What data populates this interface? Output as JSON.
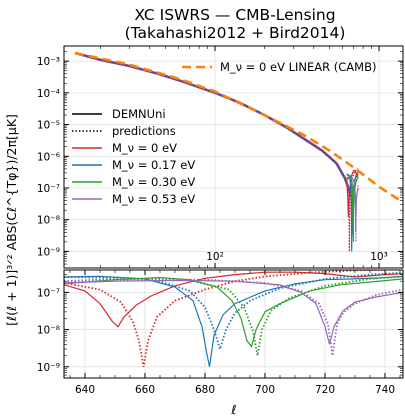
{
  "chart_data": {
    "type": "line",
    "title": "XC ISWRS — CMB-Lensing",
    "subtitle": "(Takahashi2012 + Bird2014)",
    "ylabel": "[ℓ(ℓ + 1)]³ᐟ² ABS(Cℓ^{Tφ})/2π[μK]",
    "xlabel": "ℓ",
    "colors": {
      "mnu_0": "#d62728",
      "mnu_017": "#1f77b4",
      "mnu_030": "#2ca02c",
      "mnu_053": "#9467bd",
      "linear": "#ff7f0e"
    },
    "top_panel": {
      "xscale": "log",
      "yscale": "log",
      "xlim": [
        12,
        1400
      ],
      "ylim": [
        3e-10,
        0.003
      ],
      "x_tick_labels": [
        "10²",
        "10³"
      ],
      "y_tick_labels": [
        "10⁻³",
        "10⁻⁴",
        "10⁻⁵",
        "10⁻⁶",
        "10⁻⁷",
        "10⁻⁸",
        "10⁻⁹"
      ],
      "linear_label": "M_ν = 0 eV LINEAR (CAMB)",
      "legend_labels": [
        "DEMNUni",
        "predictions",
        "M_ν = 0 eV",
        "M_ν = 0.17 eV",
        "M_ν = 0.30 eV",
        "M_ν = 0.53 eV"
      ],
      "linear_series": {
        "name": "M_ν = 0 eV LINEAR (CAMB)",
        "x": [
          14,
          30,
          60,
          100,
          200,
          350,
          500,
          700,
          1000,
          1400
        ],
        "y": [
          0.0018,
          0.00078,
          0.00028,
          0.00011,
          2e-05,
          4.6e-06,
          1.5e-06,
          4.5e-07,
          1.1e-07,
          3.5e-08
        ]
      },
      "envelope": {
        "x": [
          14,
          20,
          30,
          45,
          60,
          80,
          100,
          140,
          200,
          280,
          350,
          450,
          550,
          620,
          680
        ],
        "y": [
          0.0018,
          0.0011,
          0.0007,
          0.0004,
          0.00025,
          0.00015,
          0.0001,
          5e-05,
          2e-05,
          7.5e-06,
          3.5e-06,
          1.5e-06,
          6e-07,
          2e-07,
          5e-08
        ]
      }
    },
    "bottom_panel": {
      "xscale": "linear",
      "yscale": "log",
      "xlim": [
        633,
        746
      ],
      "ylim": [
        5e-10,
        4e-07
      ],
      "x_tick_labels": [
        "640",
        "660",
        "680",
        "700",
        "720",
        "740"
      ],
      "y_tick_labels": [
        "10⁻⁷",
        "10⁻⁸",
        "10⁻⁹"
      ],
      "series": [
        {
          "name": "M_ν = 0 eV",
          "style": "solid",
          "x": [
            633,
            640,
            645,
            649,
            651,
            653,
            657,
            662,
            670,
            680,
            690,
            700,
            710,
            720,
            730,
            740,
            746
          ],
          "y": [
            1.6e-07,
            1.1e-07,
            5e-08,
            1.7e-08,
            1.2e-08,
            2.2e-08,
            4.5e-08,
            8e-08,
            1.5e-07,
            2.4e-07,
            3e-07,
            3.5e-07,
            3.5e-07,
            3.2e-07,
            2.6e-07,
            3e-07,
            3.2e-07
          ]
        },
        {
          "name": "M_ν = 0 eV",
          "style": "dotted",
          "x": [
            633,
            645,
            652,
            656,
            658,
            659.5,
            661,
            664,
            670,
            680,
            690,
            700,
            715,
            730,
            746
          ],
          "y": [
            1.8e-07,
            1.2e-07,
            5.5e-08,
            1.6e-08,
            5e-09,
            1e-09,
            5e-09,
            2.2e-08,
            6e-08,
            1.2e-07,
            2e-07,
            2.7e-07,
            3.4e-07,
            3.9e-07,
            4.2e-07
          ]
        },
        {
          "name": "M_ν = 0.17 eV",
          "style": "solid",
          "x": [
            633,
            645,
            660,
            670,
            676,
            679,
            680.5,
            681.5,
            683,
            686,
            690,
            700,
            710,
            720,
            730,
            740,
            746
          ],
          "y": [
            2.6e-07,
            2.7e-07,
            2.3e-07,
            1.4e-07,
            6e-08,
            1.2e-08,
            2.5e-09,
            1e-09,
            7e-09,
            2.5e-08,
            5e-08,
            1.1e-07,
            1.7e-07,
            2.2e-07,
            2.3e-07,
            2.5e-07,
            2.7e-07
          ]
        },
        {
          "name": "M_ν = 0.17 eV",
          "style": "dotted",
          "x": [
            633,
            650,
            665,
            675,
            680,
            683,
            685,
            687,
            690,
            695,
            705,
            720,
            735,
            746
          ],
          "y": [
            2.6e-07,
            2.5e-07,
            2e-07,
            1.1e-07,
            4e-08,
            1e-08,
            3e-09,
            1e-08,
            2.8e-08,
            6e-08,
            1.3e-07,
            2.3e-07,
            3e-07,
            3.4e-07
          ]
        },
        {
          "name": "M_ν = 0.30 eV",
          "style": "solid",
          "x": [
            633,
            650,
            665,
            675,
            684,
            689,
            692,
            694,
            695.5,
            697,
            700,
            705,
            715,
            725,
            735,
            746
          ],
          "y": [
            1.7e-07,
            2.2e-07,
            2.5e-07,
            2.2e-07,
            1.4e-07,
            6e-08,
            2e-08,
            5e-09,
            3.5e-09,
            1e-08,
            3e-08,
            5e-08,
            1.1e-07,
            1.6e-07,
            1.9e-07,
            2.3e-07
          ]
        },
        {
          "name": "M_ν = 0.30 eV",
          "style": "dotted",
          "x": [
            633,
            655,
            675,
            688,
            693,
            696,
            697.5,
            699,
            702,
            708,
            720,
            735,
            746
          ],
          "y": [
            2e-07,
            2.4e-07,
            2.1e-07,
            1.2e-07,
            4e-08,
            9e-09,
            2e-09,
            1e-08,
            3.2e-08,
            7e-08,
            1.5e-07,
            2.3e-07,
            2.7e-07
          ]
        },
        {
          "name": "M_ν = 0.53 eV",
          "style": "solid",
          "x": [
            633,
            650,
            670,
            690,
            705,
            712,
            717,
            720,
            721.5,
            723,
            726,
            730,
            737,
            746
          ],
          "y": [
            1.8e-07,
            2e-07,
            2.1e-07,
            2e-07,
            1.6e-07,
            1e-07,
            5e-08,
            1.2e-08,
            4e-09,
            1.2e-08,
            3.2e-08,
            5.5e-08,
            7.5e-08,
            1e-07
          ]
        },
        {
          "name": "M_ν = 0.53 eV",
          "style": "dotted",
          "x": [
            633,
            655,
            680,
            700,
            712,
            718,
            721,
            722.5,
            724,
            726,
            730,
            737,
            746
          ],
          "y": [
            2e-07,
            2.2e-07,
            2.2e-07,
            1.8e-07,
            1.1e-07,
            5e-08,
            1.4e-08,
            2e-09,
            1.4e-08,
            2.8e-08,
            5e-08,
            8.5e-08,
            1.2e-07
          ]
        }
      ]
    }
  }
}
